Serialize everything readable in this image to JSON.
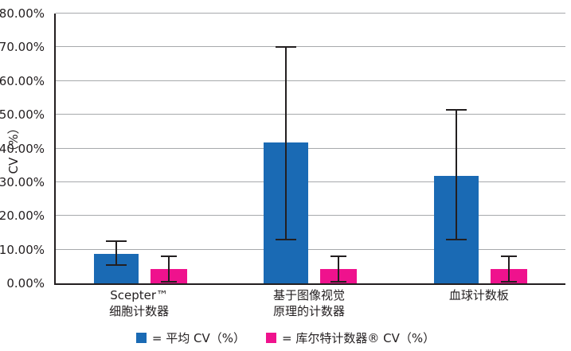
{
  "chart_data": {
    "type": "bar",
    "title": "",
    "ylabel": "CV（%）",
    "xlabel": "",
    "ylim": [
      0,
      80
    ],
    "grid": true,
    "legend_position": "bottom",
    "yticks": [
      "80.00%",
      "70.00%",
      "60.00%",
      "50.00%",
      "40.00%",
      "30.00%",
      "20.00%",
      "10.00%",
      "0.00%"
    ],
    "ytick_values": [
      80,
      70,
      60,
      50,
      40,
      30,
      20,
      10,
      0
    ],
    "categories": [
      "Scepter™\n细胞计数器",
      "基于图像视觉\n原理的计数器",
      "血球计数板"
    ],
    "series": [
      {
        "name": "平均 CV（%）",
        "color": "#1A6AB4",
        "values": [
          8.8,
          41.8,
          31.8
        ],
        "error_low": [
          5.5,
          13.0,
          13.0
        ],
        "error_high": [
          12.5,
          70.0,
          51.5
        ]
      },
      {
        "name": "库尔特计数器® CV（%）",
        "color": "#EF128D",
        "values": [
          4.2,
          4.2,
          4.2
        ],
        "error_low": [
          0.5,
          0.5,
          0.5
        ],
        "error_high": [
          8.0,
          8.0,
          8.0
        ]
      }
    ],
    "legend": [
      "= 平均 CV（%）",
      "= 库尔特计数器® CV（%）"
    ]
  }
}
